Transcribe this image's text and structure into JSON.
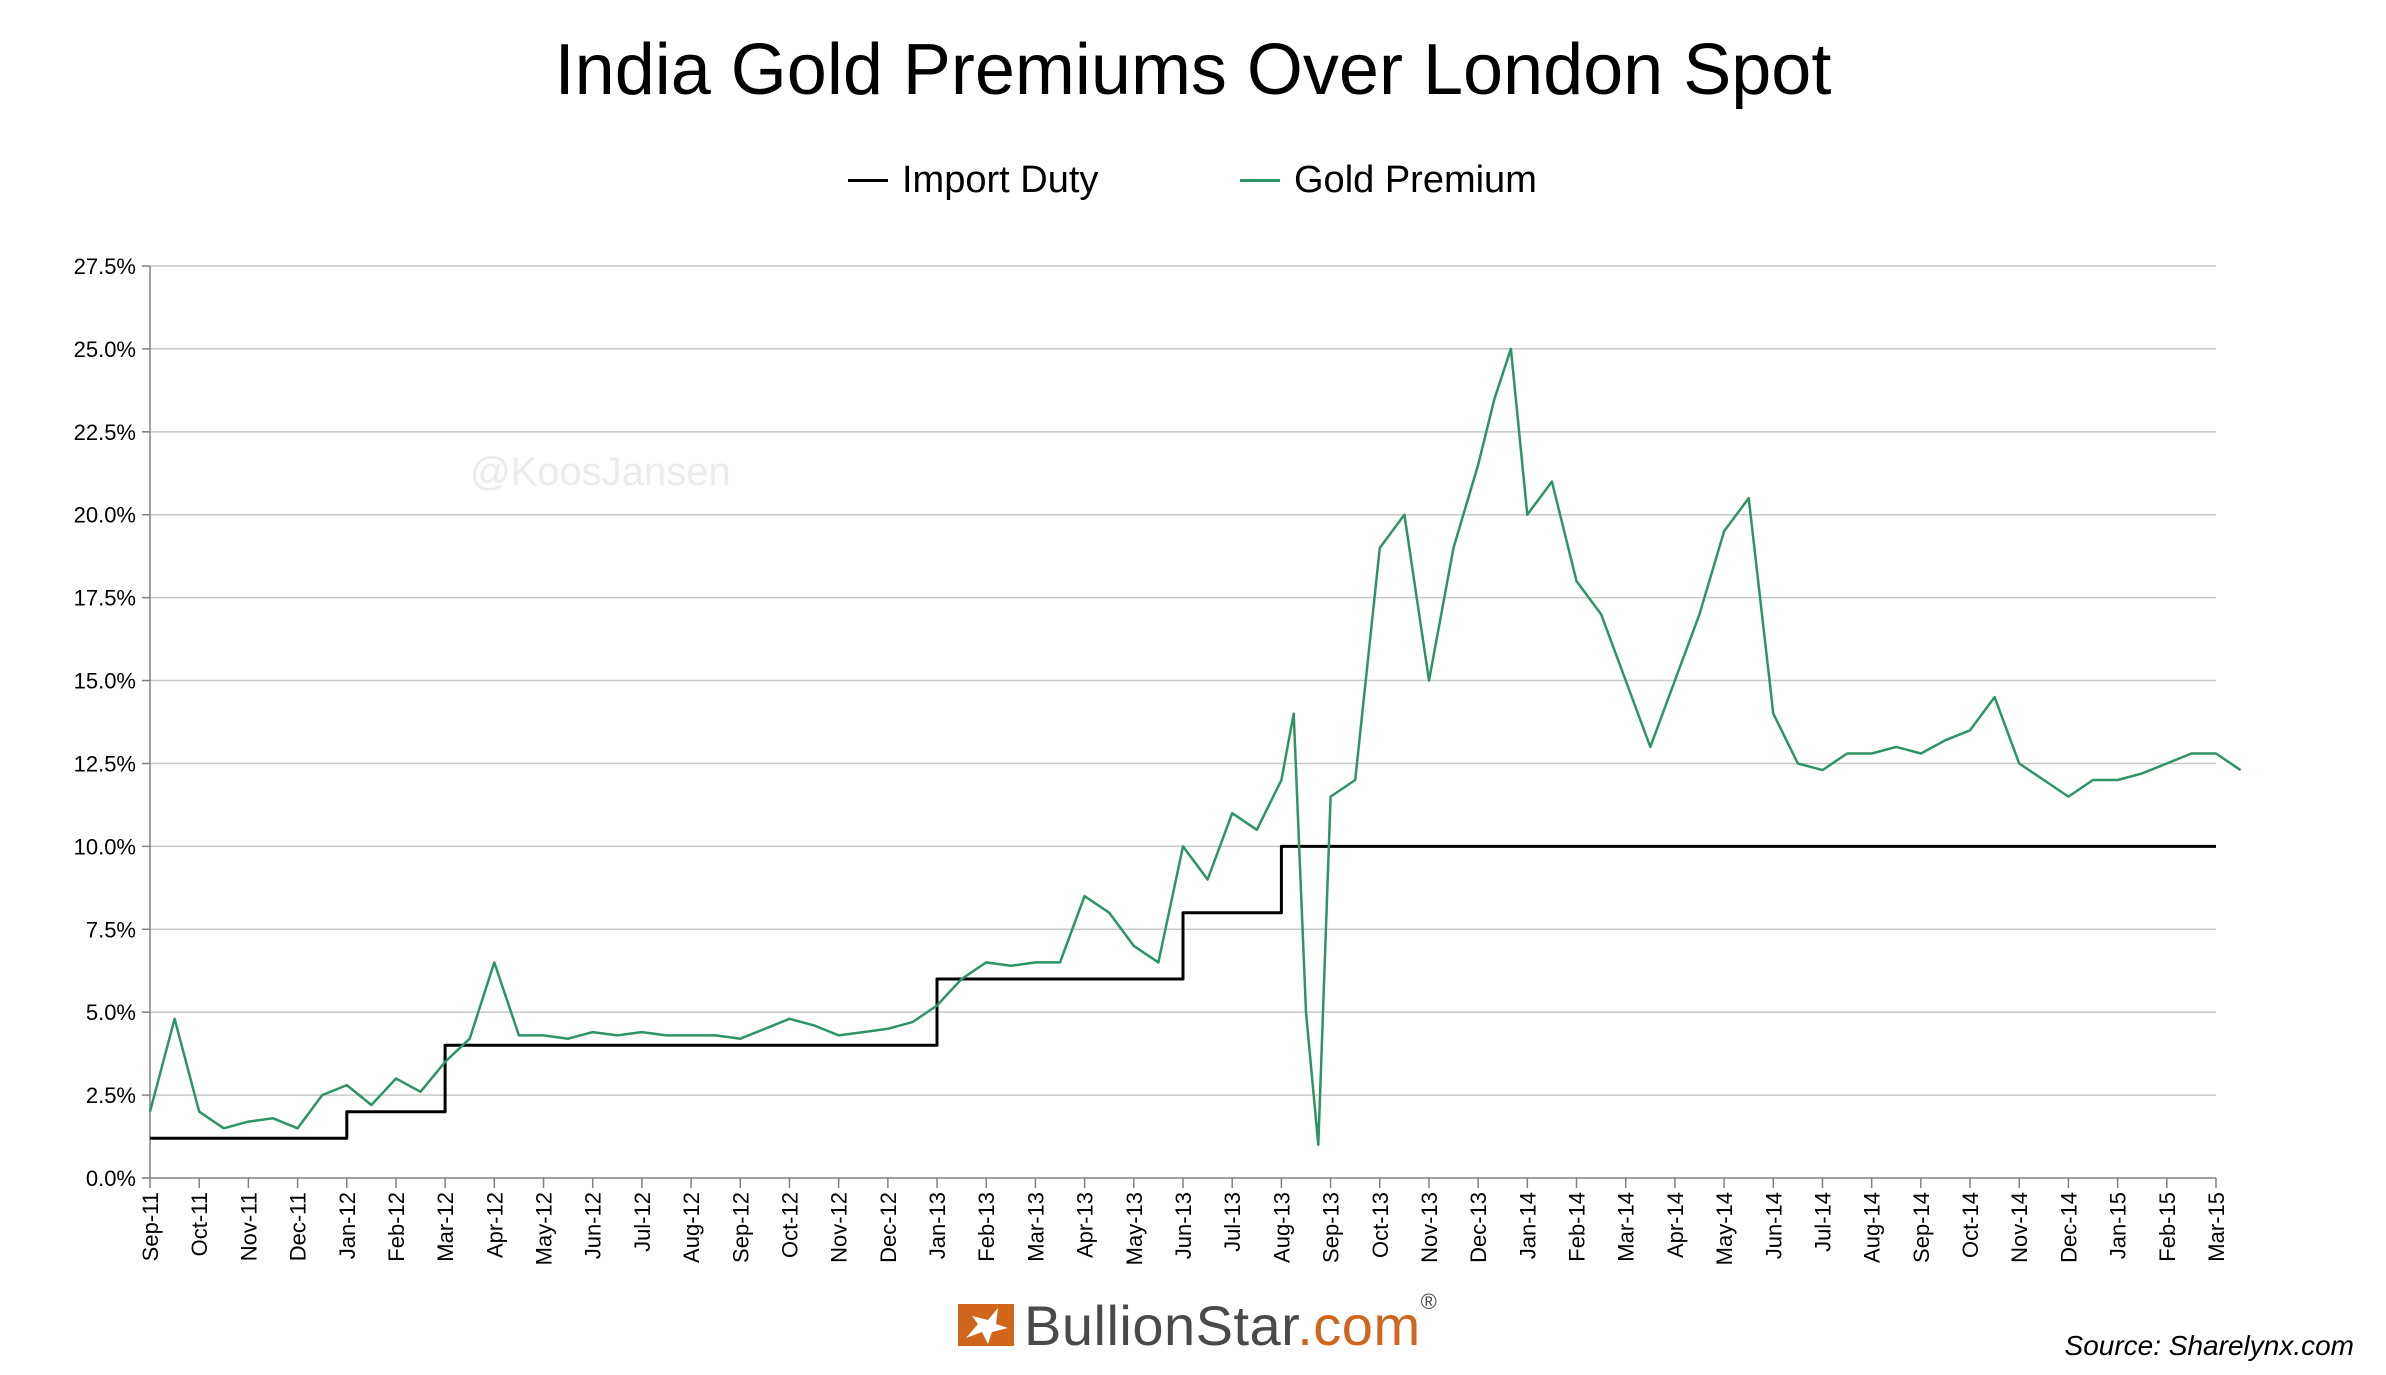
{
  "chart_data": {
    "type": "line",
    "title": "India Gold Premiums Over London Spot",
    "xlabel": "",
    "ylabel": "",
    "ylim": [
      0,
      27.5
    ],
    "y_ticks": [
      "0.0%",
      "2.5%",
      "5.0%",
      "7.5%",
      "10.0%",
      "12.5%",
      "15.0%",
      "17.5%",
      "20.0%",
      "22.5%",
      "25.0%",
      "27.5%"
    ],
    "y_tick_values": [
      0,
      2.5,
      5,
      7.5,
      10,
      12.5,
      15,
      17.5,
      20,
      22.5,
      25,
      27.5
    ],
    "x_ticks": [
      "Sep-11",
      "Oct-11",
      "Nov-11",
      "Dec-11",
      "Jan-12",
      "Feb-12",
      "Mar-12",
      "Apr-12",
      "May-12",
      "Jun-12",
      "Jul-12",
      "Aug-12",
      "Sep-12",
      "Oct-12",
      "Nov-12",
      "Dec-12",
      "Jan-13",
      "Feb-13",
      "Mar-13",
      "Apr-13",
      "May-13",
      "Jun-13",
      "Jul-13",
      "Aug-13",
      "Sep-13",
      "Oct-13",
      "Nov-13",
      "Dec-13",
      "Jan-14",
      "Feb-14",
      "Mar-14",
      "Apr-14",
      "May-14",
      "Jun-14",
      "Jul-14",
      "Aug-14",
      "Sep-14",
      "Oct-14",
      "Nov-14",
      "Dec-14",
      "Jan-15",
      "Feb-15",
      "Mar-15"
    ],
    "grid": true,
    "legend_position": "top-center",
    "series": [
      {
        "name": "Import Duty",
        "color": "#000000",
        "x": [
          "Sep-11",
          "Jan-12",
          "Jan-12",
          "Mar-12",
          "Mar-12",
          "Jan-13",
          "Jan-13",
          "Jun-13",
          "Jun-13",
          "Aug-13",
          "Aug-13",
          "Mar-15"
        ],
        "values": [
          1.2,
          1.2,
          2.0,
          2.0,
          4.0,
          4.0,
          6.0,
          6.0,
          8.0,
          8.0,
          10.0,
          10.0
        ]
      },
      {
        "name": "Gold Premium",
        "color": "#2e9464",
        "x": [
          "Sep-11",
          "Sep-11",
          "Oct-11",
          "Oct-11",
          "Nov-11",
          "Nov-11",
          "Dec-11",
          "Dec-11",
          "Jan-12",
          "Jan-12",
          "Feb-12",
          "Feb-12",
          "Mar-12",
          "Mar-12",
          "Apr-12",
          "Apr-12",
          "May-12",
          "May-12",
          "Jun-12",
          "Jun-12",
          "Jul-12",
          "Jul-12",
          "Aug-12",
          "Aug-12",
          "Sep-12",
          "Sep-12",
          "Oct-12",
          "Oct-12",
          "Nov-12",
          "Nov-12",
          "Dec-12",
          "Dec-12",
          "Jan-13",
          "Jan-13",
          "Feb-13",
          "Feb-13",
          "Mar-13",
          "Mar-13",
          "Apr-13",
          "Apr-13",
          "May-13",
          "May-13",
          "Jun-13",
          "Jun-13",
          "Jul-13",
          "Jul-13",
          "Aug-13",
          "Aug-13",
          "Aug-13",
          "Aug-13",
          "Sep-13",
          "Sep-13",
          "Oct-13",
          "Oct-13",
          "Nov-13",
          "Nov-13",
          "Dec-13",
          "Dec-13",
          "Dec-13",
          "Jan-14",
          "Jan-14",
          "Feb-14",
          "Feb-14",
          "Mar-14",
          "Mar-14",
          "Apr-14",
          "Apr-14",
          "May-14",
          "May-14",
          "Jun-14",
          "Jun-14",
          "Jul-14",
          "Jul-14",
          "Aug-14",
          "Aug-14",
          "Sep-14",
          "Sep-14",
          "Oct-14",
          "Oct-14",
          "Nov-14",
          "Nov-14",
          "Dec-14",
          "Dec-14",
          "Jan-15",
          "Jan-15",
          "Feb-15",
          "Feb-15",
          "Mar-15",
          "Mar-15"
        ],
        "values": [
          2.0,
          4.8,
          2.0,
          1.5,
          1.7,
          1.8,
          1.5,
          2.5,
          2.8,
          2.2,
          3.0,
          2.6,
          3.5,
          4.2,
          6.5,
          4.3,
          4.3,
          4.2,
          4.4,
          4.3,
          4.4,
          4.3,
          4.3,
          4.3,
          4.2,
          4.5,
          4.8,
          4.6,
          4.3,
          4.4,
          4.5,
          4.7,
          5.2,
          6.0,
          6.5,
          6.4,
          6.5,
          6.5,
          8.5,
          8.0,
          7.0,
          6.5,
          10.0,
          9.0,
          11.0,
          10.5,
          12.0,
          14.0,
          5.0,
          1.0,
          11.5,
          12.0,
          19.0,
          20.0,
          15.0,
          19.0,
          21.5,
          23.5,
          25.0,
          20.0,
          21.0,
          18.0,
          17.0,
          15.0,
          13.0,
          15.0,
          17.0,
          19.5,
          20.5,
          14.0,
          12.5,
          12.3,
          12.8,
          12.8,
          13.0,
          12.8,
          13.2,
          13.5,
          14.5,
          12.5,
          12.0,
          11.5,
          12.0,
          12.0,
          12.2,
          12.5,
          12.8,
          12.8,
          12.3
        ]
      }
    ]
  },
  "legend": {
    "items": [
      {
        "label": "Import Duty",
        "color": "#000000"
      },
      {
        "label": "Gold Premium",
        "color": "#2e9464"
      }
    ]
  },
  "watermark": "@KoosJansen",
  "brand": {
    "prefix": "BullionStar",
    "suffix": ".com",
    "registered": "®"
  },
  "source": "Source: Sharelynx.com",
  "colors": {
    "grid": "#c8c8c8",
    "axis": "#808080",
    "premium": "#2e9464",
    "duty": "#000000",
    "accent": "#d0651c"
  }
}
